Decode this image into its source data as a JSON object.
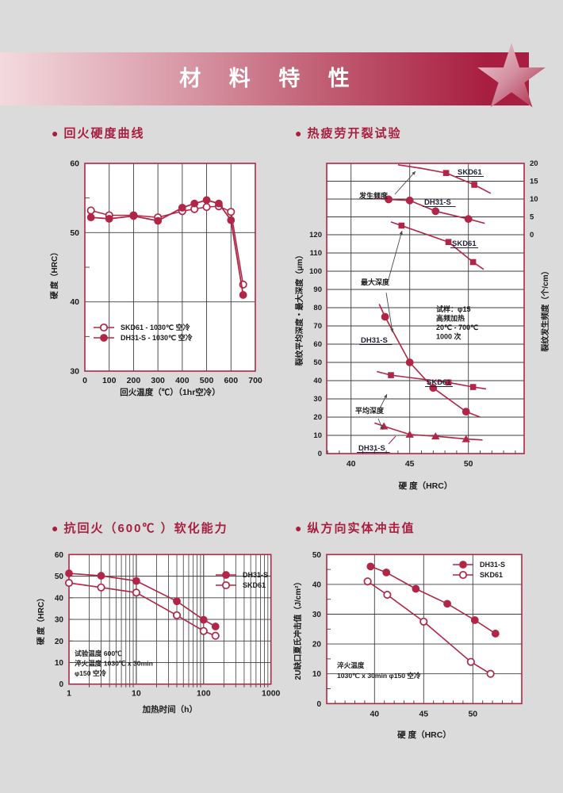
{
  "banner": {
    "title": "材 料 特 性"
  },
  "colors": {
    "page_bg": "#DBDBDB",
    "accent": "#A81E40",
    "crimson": "#B12646",
    "grid": "#3D3D3D",
    "label_dark": "#23233A",
    "banner_from": "#F3DADF",
    "banner_to": "#A81E40"
  },
  "icons": {
    "section_bullet": "●",
    "star": "star-shape"
  },
  "chart_data": [
    {
      "id": "tempering-hardness",
      "type": "line",
      "title": "回火硬度曲线",
      "xlabel": "回火温度（℃）（1hr空冷）",
      "ylabel": "硬 度（HRC）",
      "xlim": [
        0,
        700
      ],
      "ylim": [
        30,
        60
      ],
      "xticks": [
        0,
        100,
        200,
        300,
        400,
        500,
        600,
        700
      ],
      "yticks": [
        60,
        50,
        40,
        30
      ],
      "yminor": [
        55,
        45,
        35
      ],
      "grid_x": [
        100,
        200,
        300,
        400,
        500,
        600
      ],
      "grid_y": [
        50,
        40
      ],
      "series": [
        {
          "name": "SKD61",
          "legend": "SKD61  - 1030℃ 空冷",
          "marker": "circle-open",
          "x": [
            25,
            100,
            200,
            300,
            400,
            450,
            500,
            550,
            600,
            650
          ],
          "y": [
            53.2,
            52.5,
            52.5,
            52.2,
            53.1,
            53.4,
            53.7,
            53.8,
            53.0,
            42.5
          ]
        },
        {
          "name": "DH31-S",
          "legend": "DH31-S - 1030℃ 空冷",
          "marker": "circle-filled",
          "x": [
            25,
            100,
            200,
            300,
            400,
            450,
            500,
            550,
            600,
            650
          ],
          "y": [
            52.2,
            52.0,
            52.4,
            51.7,
            53.6,
            54.2,
            54.7,
            54.2,
            51.8,
            41.0
          ]
        }
      ]
    },
    {
      "id": "thermal-fatigue",
      "type": "line",
      "title": "热疲劳开裂试验",
      "xlabel": "硬 度（HRC）",
      "ylabel_left": "裂纹平均深度・最大深度（μm）",
      "ylabel_right": "裂纹发生频度（个/cm）",
      "xticks": [
        40,
        45,
        50
      ],
      "yticks_left": [
        120,
        110,
        100,
        90,
        80,
        70,
        60,
        50,
        40,
        30,
        20,
        10,
        0
      ],
      "yticks_right": [
        20,
        15,
        10,
        5,
        0
      ],
      "note_lines": [
        "试样：φ15",
        "高频加热",
        "20℃ - 700℃",
        "1000 次"
      ],
      "annotations": [
        {
          "text": "发生频度"
        },
        {
          "text": "最大深度"
        },
        {
          "text": "平均深度"
        }
      ],
      "series": [
        {
          "group": "发生频度",
          "name": "SKD61",
          "axis": "right",
          "marker": "square",
          "line_x": [
            44.0,
            46.0,
            48.1,
            50.5,
            51.9
          ],
          "line_y": [
            19.6,
            18.6,
            17.3,
            14.0,
            11.6
          ],
          "pt_x": [
            48.1,
            50.5
          ],
          "pt_y": [
            17.3,
            14.0
          ]
        },
        {
          "group": "发生频度",
          "name": "DH31-S",
          "axis": "right",
          "marker": "circle-filled",
          "line_x": [
            42.0,
            43.2,
            45.0,
            47.2,
            50.0,
            51.4
          ],
          "line_y": [
            10.2,
            9.9,
            9.6,
            6.6,
            4.4,
            3.2
          ],
          "pt_x": [
            43.2,
            45.0,
            47.2,
            50.0
          ],
          "pt_y": [
            9.9,
            9.6,
            6.6,
            4.4
          ]
        },
        {
          "group": "最大深度",
          "name": "SKD61",
          "axis": "left",
          "marker": "square",
          "line_x": [
            43.4,
            44.3,
            48.3,
            50.4,
            51.3
          ],
          "line_y": [
            127,
            125,
            116,
            105,
            101
          ],
          "pt_x": [
            44.3,
            48.3,
            50.4
          ],
          "pt_y": [
            125,
            116,
            105
          ]
        },
        {
          "group": "最大深度",
          "name": "DH31-S",
          "axis": "left",
          "marker": "circle-filled",
          "line_x": [
            42.4,
            42.9,
            45.0,
            47.0,
            49.8,
            51.0
          ],
          "line_y": [
            82,
            75,
            50,
            36,
            23,
            20
          ],
          "pt_x": [
            42.9,
            45.0,
            47.0,
            49.8
          ],
          "pt_y": [
            75,
            50,
            36,
            23
          ]
        },
        {
          "group": "平均深度",
          "name": "SKD61",
          "axis": "left",
          "marker": "square",
          "line_x": [
            42.2,
            43.4,
            48.3,
            50.4,
            51.5
          ],
          "line_y": [
            45,
            43,
            39,
            36.5,
            35.5
          ],
          "pt_x": [
            43.4,
            48.3,
            50.4
          ],
          "pt_y": [
            43,
            39,
            36.5
          ]
        },
        {
          "group": "平均深度",
          "name": "DH31-S",
          "axis": "left",
          "marker": "triangle",
          "line_x": [
            42.0,
            42.8,
            45.0,
            47.2,
            49.8,
            51.2
          ],
          "line_y": [
            16.8,
            15,
            10.5,
            9.5,
            8,
            7.5
          ],
          "pt_x": [
            42.8,
            45.0,
            47.2,
            49.8
          ],
          "pt_y": [
            15,
            10.5,
            9.5,
            8
          ]
        }
      ]
    },
    {
      "id": "softening-resistance",
      "type": "line",
      "title": "抗回火（600℃ ）软化能力",
      "xlabel": "加热时间（h）",
      "ylabel": "硬 度（HRC）",
      "xscale": "log",
      "xlim": [
        1,
        1000
      ],
      "ylim": [
        0,
        60
      ],
      "xticks": [
        1,
        10,
        100,
        1000
      ],
      "yticks": [
        60,
        50,
        40,
        30,
        20,
        10,
        0
      ],
      "note_lines": [
        "试验温度 600℃",
        "淬火温度 1030℃ x 30min",
        "φ150 空冷"
      ],
      "series": [
        {
          "name": "DH31-S",
          "legend": "DH31-S",
          "marker": "circle-filled",
          "x": [
            1,
            3,
            10,
            40,
            100,
            150
          ],
          "y": [
            51.3,
            50.2,
            47.8,
            38.4,
            29.8,
            26.7
          ]
        },
        {
          "name": "SKD61",
          "legend": "SKD61",
          "marker": "circle-open",
          "x": [
            1,
            3,
            10,
            40,
            100,
            150
          ],
          "y": [
            46.9,
            44.8,
            42.4,
            31.9,
            24.6,
            22.4
          ]
        }
      ]
    },
    {
      "id": "longitudinal-impact",
      "type": "line",
      "title": "纵方向实体冲击值",
      "xlabel": "硬 度（HRC）",
      "ylabel": "2U缺口夏氏冲击值（J/cm²）",
      "xlim": [
        35,
        55
      ],
      "ylim": [
        0,
        50
      ],
      "xticks": [
        40,
        45,
        50
      ],
      "yticks": [
        50,
        40,
        30,
        20,
        10,
        0
      ],
      "note_lines": [
        "淬火温度",
        "1030℃ x 30min φ150 空冷"
      ],
      "series": [
        {
          "name": "DH31-S",
          "legend": "DH31-S",
          "marker": "circle-filled",
          "x": [
            39.6,
            41.2,
            44.2,
            47.4,
            50.2,
            52.3
          ],
          "y": [
            46,
            44,
            38.5,
            33.5,
            28,
            23.5
          ]
        },
        {
          "name": "SKD61",
          "legend": "SKD61",
          "marker": "circle-open",
          "x": [
            39.3,
            41.3,
            45.0,
            49.8,
            51.8
          ],
          "y": [
            41,
            36.5,
            27.5,
            14,
            10
          ]
        }
      ]
    }
  ]
}
